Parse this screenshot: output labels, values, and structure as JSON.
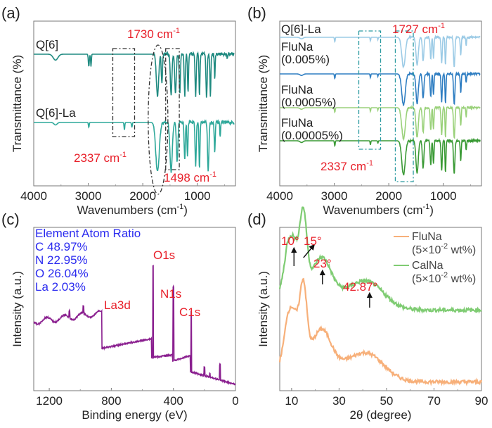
{
  "chart_data": [
    {
      "id": "a",
      "type": "line",
      "panel_label": "(a)",
      "xlabel": "Wavenumbers (cm",
      "xlabel_sup": "-1",
      "xlabel_end": ")",
      "ylabel": "Transmittance (%)",
      "xlim": [
        4000,
        300
      ],
      "xticks": [
        4000,
        3000,
        2000,
        1000
      ],
      "series": [
        {
          "name": "Q[6]",
          "color": "#1f8a80",
          "offset": 0,
          "dips": [
            [
              3600,
              0.12,
              120
            ],
            [
              2990,
              0.25,
              25
            ],
            [
              2950,
              0.25,
              20
            ],
            [
              1730,
              0.85,
              60
            ],
            [
              1650,
              0.6,
              30
            ],
            [
              1480,
              0.85,
              40
            ],
            [
              1400,
              0.8,
              40
            ],
            [
              1320,
              0.8,
              30
            ],
            [
              1230,
              0.85,
              30
            ],
            [
              1170,
              0.8,
              25
            ],
            [
              1030,
              0.85,
              30
            ],
            [
              960,
              0.85,
              25
            ],
            [
              830,
              0.9,
              30
            ],
            [
              760,
              0.85,
              25
            ],
            [
              680,
              0.5,
              20
            ],
            [
              450,
              0.1,
              20
            ]
          ]
        },
        {
          "name": "Q[6]-La",
          "color": "#2ea89a",
          "offset": 1,
          "dips": [
            [
              3600,
              0.05,
              80
            ],
            [
              2990,
              0.1,
              20
            ],
            [
              2337,
              0.15,
              20
            ],
            [
              2200,
              0.1,
              20
            ],
            [
              1730,
              1.0,
              90
            ],
            [
              1480,
              1.0,
              60
            ],
            [
              1370,
              0.8,
              40
            ],
            [
              1230,
              0.75,
              30
            ],
            [
              1180,
              0.7,
              25
            ],
            [
              1030,
              0.9,
              30
            ],
            [
              960,
              0.95,
              25
            ],
            [
              800,
              1.0,
              35
            ],
            [
              680,
              0.6,
              25
            ],
            [
              580,
              0.3,
              20
            ]
          ]
        }
      ],
      "annotations": [
        {
          "text": "1730 cm",
          "sup": "-1",
          "x": 1730,
          "color": "#e8202a"
        },
        {
          "text": "2337 cm",
          "sup": "-1",
          "x": 2337,
          "color": "#e8202a"
        },
        {
          "text": "1498 cm",
          "sup": "-1",
          "x": 1498,
          "color": "#e8202a"
        }
      ]
    },
    {
      "id": "b",
      "type": "line",
      "panel_label": "(b)",
      "xlabel": "Wavenumbers (cm",
      "xlabel_sup": "-1",
      "xlabel_end": ")",
      "ylabel": "Transmittance (%)",
      "xlim": [
        4000,
        300
      ],
      "xticks": [
        4000,
        3000,
        2000,
        1000
      ],
      "series": [
        {
          "name": "Q[6]-La",
          "color": "#9ccbe6",
          "label_lines": [
            "Q[6]-La"
          ]
        },
        {
          "name": "FluNa (0.005%)",
          "color": "#2f7ec2",
          "label_lines": [
            "FluNa",
            "(0.005%)"
          ]
        },
        {
          "name": "FluNa (0.0005%)",
          "color": "#9ad17a",
          "label_lines": [
            "FluNa",
            "(0.0005%)"
          ]
        },
        {
          "name": "FluNa (0.00005%)",
          "color": "#3a9a35",
          "label_lines": [
            "FluNa",
            "(0.00005%)"
          ]
        }
      ],
      "annotations": [
        {
          "text": "1727 cm",
          "sup": "-1",
          "x": 1727,
          "color": "#e8202a"
        },
        {
          "text": "2337 cm",
          "sup": "-1",
          "x": 2337,
          "color": "#e8202a"
        }
      ]
    },
    {
      "id": "c",
      "type": "line",
      "panel_label": "(c)",
      "xlabel": "Binding energy (eV)",
      "ylabel": "Intensity (a.u.)",
      "xlim": [
        1300,
        0
      ],
      "xticks": [
        1200,
        800,
        400,
        0
      ],
      "series": [
        {
          "name": "XPS survey",
          "color": "#8a1f8f"
        }
      ],
      "peaks": [
        {
          "label": "O1s",
          "x": 531
        },
        {
          "label": "N1s",
          "x": 400
        },
        {
          "label": "C1s",
          "x": 285
        },
        {
          "label": "La3d",
          "x": 836
        }
      ],
      "atom_ratio_title": "Element Atom Ratio",
      "atom_ratio": [
        "C 48.97%",
        "N 22.95%",
        "O 26.04%",
        "La 2.03%"
      ],
      "text_color": "#2b2bef",
      "peak_color": "#e8202a"
    },
    {
      "id": "d",
      "type": "line",
      "panel_label": "(d)",
      "xlabel": "2θ (degree)",
      "ylabel": "Intensity (a.u.)",
      "xlim": [
        5,
        90
      ],
      "xticks": [
        10,
        30,
        50,
        70,
        90
      ],
      "series": [
        {
          "name": "FluNa (5×10-2 wt%)",
          "label_l1": "FluNa",
          "label_l2": "(5×10",
          "label_sup": "-2",
          "label_l2b": " wt%)",
          "color": "#f7b07a"
        },
        {
          "name": "CalNa (5×10-2 wt%)",
          "label_l1": "CalNa",
          "label_l2": "(5×10",
          "label_sup": "-2",
          "label_l2b": " wt%)",
          "color": "#7fcc73"
        }
      ],
      "annotations": [
        {
          "text": "10°",
          "x": 10
        },
        {
          "text": "15°",
          "x": 15
        },
        {
          "text": "23°",
          "x": 23
        },
        {
          "text": "42.87°",
          "x": 42.87
        }
      ]
    }
  ]
}
